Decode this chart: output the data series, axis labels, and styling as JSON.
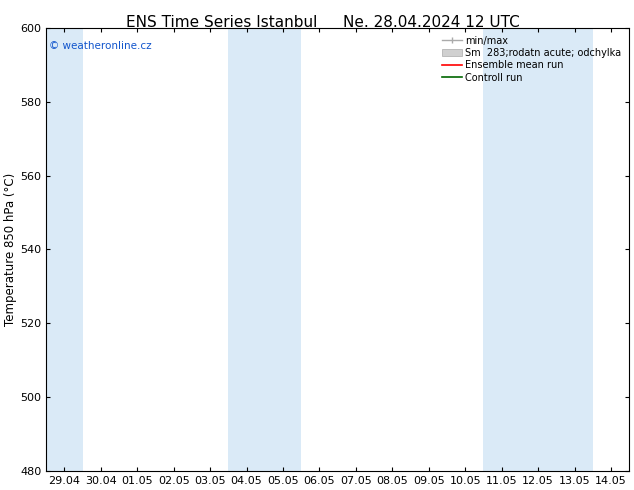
{
  "title_left": "ENS Time Series Istanbul",
  "title_right": "Ne. 28.04.2024 12 UTC",
  "ylabel": "Temperature 850 hPa (°C)",
  "ylim": [
    480,
    600
  ],
  "yticks": [
    480,
    500,
    520,
    540,
    560,
    580,
    600
  ],
  "xlabels": [
    "29.04",
    "30.04",
    "01.05",
    "02.05",
    "03.05",
    "04.05",
    "05.05",
    "06.05",
    "07.05",
    "08.05",
    "09.05",
    "10.05",
    "11.05",
    "12.05",
    "13.05",
    "14.05"
  ],
  "shade_color": "#daeaf7",
  "background_color": "#ffffff",
  "watermark": "© weatheronline.cz",
  "watermark_color": "#1155cc",
  "shaded_ranges": [
    [
      0,
      1
    ],
    [
      5,
      7
    ],
    [
      12,
      15
    ]
  ],
  "title_fontsize": 11,
  "axis_fontsize": 8.5,
  "tick_fontsize": 8
}
